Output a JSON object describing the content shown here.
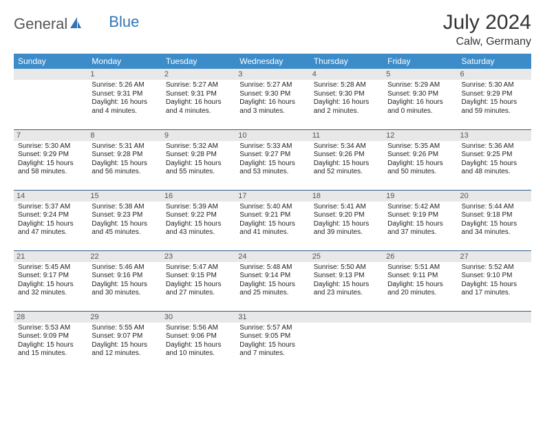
{
  "logo": {
    "part1": "General",
    "part2": "Blue"
  },
  "title": "July 2024",
  "location": "Calw, Germany",
  "daysOfWeek": [
    "Sunday",
    "Monday",
    "Tuesday",
    "Wednesday",
    "Thursday",
    "Friday",
    "Saturday"
  ],
  "colors": {
    "header_bg": "#3c8cc9",
    "header_text": "#ffffff",
    "daynum_bg": "#e8e8e8",
    "row_border": "#2f5d8a",
    "logo_blue": "#2f75b5",
    "text": "#222222"
  },
  "weeks": [
    [
      null,
      {
        "n": "1",
        "sr": "Sunrise: 5:26 AM",
        "ss": "Sunset: 9:31 PM",
        "dl1": "Daylight: 16 hours",
        "dl2": "and 4 minutes."
      },
      {
        "n": "2",
        "sr": "Sunrise: 5:27 AM",
        "ss": "Sunset: 9:31 PM",
        "dl1": "Daylight: 16 hours",
        "dl2": "and 4 minutes."
      },
      {
        "n": "3",
        "sr": "Sunrise: 5:27 AM",
        "ss": "Sunset: 9:30 PM",
        "dl1": "Daylight: 16 hours",
        "dl2": "and 3 minutes."
      },
      {
        "n": "4",
        "sr": "Sunrise: 5:28 AM",
        "ss": "Sunset: 9:30 PM",
        "dl1": "Daylight: 16 hours",
        "dl2": "and 2 minutes."
      },
      {
        "n": "5",
        "sr": "Sunrise: 5:29 AM",
        "ss": "Sunset: 9:30 PM",
        "dl1": "Daylight: 16 hours",
        "dl2": "and 0 minutes."
      },
      {
        "n": "6",
        "sr": "Sunrise: 5:30 AM",
        "ss": "Sunset: 9:29 PM",
        "dl1": "Daylight: 15 hours",
        "dl2": "and 59 minutes."
      }
    ],
    [
      {
        "n": "7",
        "sr": "Sunrise: 5:30 AM",
        "ss": "Sunset: 9:29 PM",
        "dl1": "Daylight: 15 hours",
        "dl2": "and 58 minutes."
      },
      {
        "n": "8",
        "sr": "Sunrise: 5:31 AM",
        "ss": "Sunset: 9:28 PM",
        "dl1": "Daylight: 15 hours",
        "dl2": "and 56 minutes."
      },
      {
        "n": "9",
        "sr": "Sunrise: 5:32 AM",
        "ss": "Sunset: 9:28 PM",
        "dl1": "Daylight: 15 hours",
        "dl2": "and 55 minutes."
      },
      {
        "n": "10",
        "sr": "Sunrise: 5:33 AM",
        "ss": "Sunset: 9:27 PM",
        "dl1": "Daylight: 15 hours",
        "dl2": "and 53 minutes."
      },
      {
        "n": "11",
        "sr": "Sunrise: 5:34 AM",
        "ss": "Sunset: 9:26 PM",
        "dl1": "Daylight: 15 hours",
        "dl2": "and 52 minutes."
      },
      {
        "n": "12",
        "sr": "Sunrise: 5:35 AM",
        "ss": "Sunset: 9:26 PM",
        "dl1": "Daylight: 15 hours",
        "dl2": "and 50 minutes."
      },
      {
        "n": "13",
        "sr": "Sunrise: 5:36 AM",
        "ss": "Sunset: 9:25 PM",
        "dl1": "Daylight: 15 hours",
        "dl2": "and 48 minutes."
      }
    ],
    [
      {
        "n": "14",
        "sr": "Sunrise: 5:37 AM",
        "ss": "Sunset: 9:24 PM",
        "dl1": "Daylight: 15 hours",
        "dl2": "and 47 minutes."
      },
      {
        "n": "15",
        "sr": "Sunrise: 5:38 AM",
        "ss": "Sunset: 9:23 PM",
        "dl1": "Daylight: 15 hours",
        "dl2": "and 45 minutes."
      },
      {
        "n": "16",
        "sr": "Sunrise: 5:39 AM",
        "ss": "Sunset: 9:22 PM",
        "dl1": "Daylight: 15 hours",
        "dl2": "and 43 minutes."
      },
      {
        "n": "17",
        "sr": "Sunrise: 5:40 AM",
        "ss": "Sunset: 9:21 PM",
        "dl1": "Daylight: 15 hours",
        "dl2": "and 41 minutes."
      },
      {
        "n": "18",
        "sr": "Sunrise: 5:41 AM",
        "ss": "Sunset: 9:20 PM",
        "dl1": "Daylight: 15 hours",
        "dl2": "and 39 minutes."
      },
      {
        "n": "19",
        "sr": "Sunrise: 5:42 AM",
        "ss": "Sunset: 9:19 PM",
        "dl1": "Daylight: 15 hours",
        "dl2": "and 37 minutes."
      },
      {
        "n": "20",
        "sr": "Sunrise: 5:44 AM",
        "ss": "Sunset: 9:18 PM",
        "dl1": "Daylight: 15 hours",
        "dl2": "and 34 minutes."
      }
    ],
    [
      {
        "n": "21",
        "sr": "Sunrise: 5:45 AM",
        "ss": "Sunset: 9:17 PM",
        "dl1": "Daylight: 15 hours",
        "dl2": "and 32 minutes."
      },
      {
        "n": "22",
        "sr": "Sunrise: 5:46 AM",
        "ss": "Sunset: 9:16 PM",
        "dl1": "Daylight: 15 hours",
        "dl2": "and 30 minutes."
      },
      {
        "n": "23",
        "sr": "Sunrise: 5:47 AM",
        "ss": "Sunset: 9:15 PM",
        "dl1": "Daylight: 15 hours",
        "dl2": "and 27 minutes."
      },
      {
        "n": "24",
        "sr": "Sunrise: 5:48 AM",
        "ss": "Sunset: 9:14 PM",
        "dl1": "Daylight: 15 hours",
        "dl2": "and 25 minutes."
      },
      {
        "n": "25",
        "sr": "Sunrise: 5:50 AM",
        "ss": "Sunset: 9:13 PM",
        "dl1": "Daylight: 15 hours",
        "dl2": "and 23 minutes."
      },
      {
        "n": "26",
        "sr": "Sunrise: 5:51 AM",
        "ss": "Sunset: 9:11 PM",
        "dl1": "Daylight: 15 hours",
        "dl2": "and 20 minutes."
      },
      {
        "n": "27",
        "sr": "Sunrise: 5:52 AM",
        "ss": "Sunset: 9:10 PM",
        "dl1": "Daylight: 15 hours",
        "dl2": "and 17 minutes."
      }
    ],
    [
      {
        "n": "28",
        "sr": "Sunrise: 5:53 AM",
        "ss": "Sunset: 9:09 PM",
        "dl1": "Daylight: 15 hours",
        "dl2": "and 15 minutes."
      },
      {
        "n": "29",
        "sr": "Sunrise: 5:55 AM",
        "ss": "Sunset: 9:07 PM",
        "dl1": "Daylight: 15 hours",
        "dl2": "and 12 minutes."
      },
      {
        "n": "30",
        "sr": "Sunrise: 5:56 AM",
        "ss": "Sunset: 9:06 PM",
        "dl1": "Daylight: 15 hours",
        "dl2": "and 10 minutes."
      },
      {
        "n": "31",
        "sr": "Sunrise: 5:57 AM",
        "ss": "Sunset: 9:05 PM",
        "dl1": "Daylight: 15 hours",
        "dl2": "and 7 minutes."
      },
      null,
      null,
      null
    ]
  ]
}
